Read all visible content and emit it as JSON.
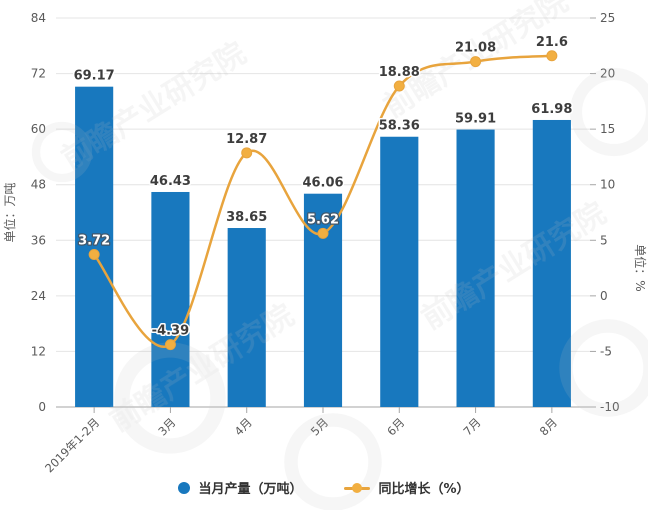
{
  "chart_data": {
    "type": "bar",
    "subtype": "bar-line-combo",
    "categories": [
      "2019年1-2月",
      "3月",
      "4月",
      "5月",
      "6月",
      "7月",
      "8月"
    ],
    "series": [
      {
        "name": "当月产量（万吨）",
        "type": "bar",
        "axis": "left",
        "values": [
          69.17,
          46.43,
          38.65,
          46.06,
          58.36,
          59.91,
          61.98
        ],
        "color": "#1878BE"
      },
      {
        "name": "同比增长（%）",
        "type": "line",
        "axis": "right",
        "values": [
          3.72,
          -4.39,
          12.87,
          5.62,
          18.88,
          21.08,
          21.6
        ],
        "color": "#E8A43D",
        "marker_color": "#F2AF41",
        "inverted_label_indices": [
          0,
          3
        ]
      }
    ],
    "left_axis": {
      "title": "单位：万吨",
      "min": 0,
      "max": 84,
      "ticks": [
        0,
        12,
        24,
        36,
        48,
        60,
        72,
        84
      ]
    },
    "right_axis": {
      "title": "单位：%",
      "min": -10,
      "max": 25,
      "ticks": [
        -10,
        -5,
        0,
        5,
        10,
        15,
        20,
        25
      ]
    },
    "legend": [
      "当月产量（万吨）",
      "同比增长（%）"
    ],
    "grid": true,
    "legend_position": "bottom",
    "colors": {
      "grid_line": "#e4e4e4",
      "axis_line": "#a6a6a6",
      "tick_text": "#5a5a5a",
      "watermark": "#bfbfbf"
    }
  },
  "watermark": {
    "text": "前瞻产业研究院"
  }
}
